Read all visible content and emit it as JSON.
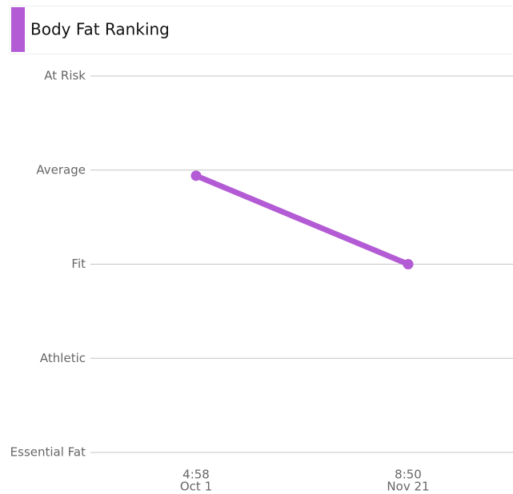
{
  "chart_data": {
    "type": "line",
    "title": "Body Fat Ranking",
    "categories": [
      "Oct 1",
      "Nov 21"
    ],
    "times": [
      "4:58",
      "8:50"
    ],
    "series": [
      {
        "color": "#b35bd4",
        "values": [
          2.94,
          2
        ]
      }
    ],
    "ylim": [
      0,
      4
    ],
    "yticks": [
      {
        "value": 0,
        "label": "Essential Fat"
      },
      {
        "value": 1,
        "label": "Athletic"
      },
      {
        "value": 2,
        "label": "Fit"
      },
      {
        "value": 3,
        "label": "Average"
      },
      {
        "value": 4,
        "label": "At Risk"
      }
    ],
    "grid": true
  }
}
